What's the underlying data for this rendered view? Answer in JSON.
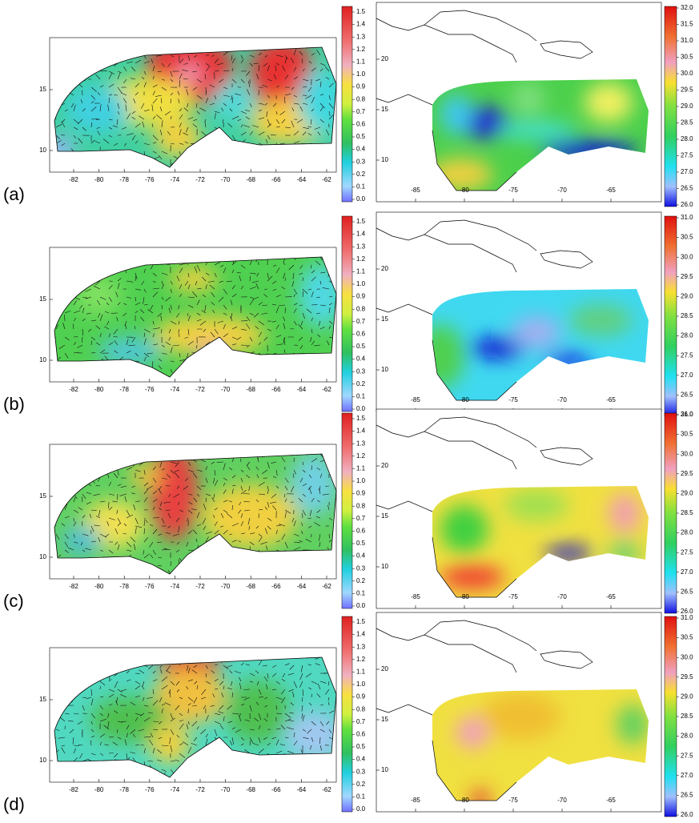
{
  "panels": [
    {
      "label": "(a)",
      "current_map": {
        "x_ticks": [
          "-82",
          "-80",
          "-78",
          "-76",
          "-74",
          "-72",
          "-70",
          "-68",
          "-66",
          "-64",
          "-62"
        ],
        "y_ticks": [
          "10",
          "15"
        ],
        "colorbar_ticks": [
          "0.0",
          "0.1",
          "0.2",
          "0.3",
          "0.4",
          "0.5",
          "0.6",
          "0.7",
          "0.8",
          "0.9",
          "1.0",
          "1.1",
          "1.2",
          "1.3",
          "1.4",
          "1.5"
        ]
      },
      "temperature_map": {
        "x_ticks": [
          "-85",
          "-80",
          "-75",
          "-70",
          "-65"
        ],
        "y_ticks": [
          "10",
          "15",
          "20"
        ],
        "colorbar_ticks": [
          "26.0",
          "26.5",
          "27.0",
          "27.5",
          "28.0",
          "28.5",
          "29.0",
          "29.5",
          "30.0",
          "30.5",
          "31.0",
          "31.5",
          "32.0"
        ]
      }
    },
    {
      "label": "(b)",
      "current_map": {
        "x_ticks": [
          "-82",
          "-80",
          "-78",
          "-76",
          "-74",
          "-72",
          "-70",
          "-68",
          "-66",
          "-64",
          "-62"
        ],
        "y_ticks": [
          "10",
          "15"
        ],
        "colorbar_ticks": [
          "0.0",
          "0.1",
          "0.2",
          "0.3",
          "0.4",
          "0.5",
          "0.6",
          "0.7",
          "0.8",
          "0.9",
          "1.0",
          "1.1",
          "1.2",
          "1.3",
          "1.4",
          "1.5"
        ]
      },
      "temperature_map": {
        "x_ticks": [
          "-85",
          "-80",
          "-75",
          "-70",
          "-65"
        ],
        "y_ticks": [
          "10",
          "15",
          "20"
        ],
        "colorbar_ticks": [
          "26.0",
          "26.5",
          "27.0",
          "27.5",
          "28.0",
          "28.5",
          "29.0",
          "29.5",
          "30.0",
          "30.5",
          "31.0"
        ]
      }
    },
    {
      "label": "(c)",
      "current_map": {
        "x_ticks": [
          "-82",
          "-80",
          "-78",
          "-76",
          "-74",
          "-72",
          "-70",
          "-68",
          "-66",
          "-64",
          "-62"
        ],
        "y_ticks": [
          "10",
          "15"
        ],
        "colorbar_ticks": [
          "0.0",
          "0.1",
          "0.2",
          "0.3",
          "0.4",
          "0.5",
          "0.6",
          "0.7",
          "0.8",
          "0.9",
          "1.0",
          "1.1",
          "1.2",
          "1.3",
          "1.4",
          "1.5"
        ]
      },
      "temperature_map": {
        "x_ticks": [
          "-85",
          "-80",
          "-75",
          "-70",
          "-65"
        ],
        "y_ticks": [
          "10",
          "15",
          "20"
        ],
        "colorbar_ticks": [
          "26.0",
          "26.5",
          "27.0",
          "27.5",
          "28.0",
          "28.5",
          "29.0",
          "29.5",
          "30.0",
          "30.5",
          "31.0"
        ]
      }
    },
    {
      "label": "(d)",
      "current_map": {
        "x_ticks": [
          "-82",
          "-80",
          "-78",
          "-76",
          "-74",
          "-72",
          "-70",
          "-68",
          "-66",
          "-64",
          "-62"
        ],
        "y_ticks": [
          "10",
          "15"
        ],
        "colorbar_ticks": [
          "0.0",
          "0.1",
          "0.2",
          "0.3",
          "0.4",
          "0.5",
          "0.6",
          "0.7",
          "0.8",
          "0.9",
          "1.0",
          "1.1",
          "1.2",
          "1.3",
          "1.4",
          "1.5"
        ]
      },
      "temperature_map": {
        "x_ticks": [
          "-85",
          "-80",
          "-75",
          "-70",
          "-65"
        ],
        "y_ticks": [
          "10",
          "15",
          "20"
        ],
        "colorbar_ticks": [
          "26.0",
          "26.5",
          "27.0",
          "27.5",
          "28.0",
          "28.5",
          "29.0",
          "29.5",
          "30.0",
          "30.5",
          "31.0"
        ]
      }
    }
  ]
}
